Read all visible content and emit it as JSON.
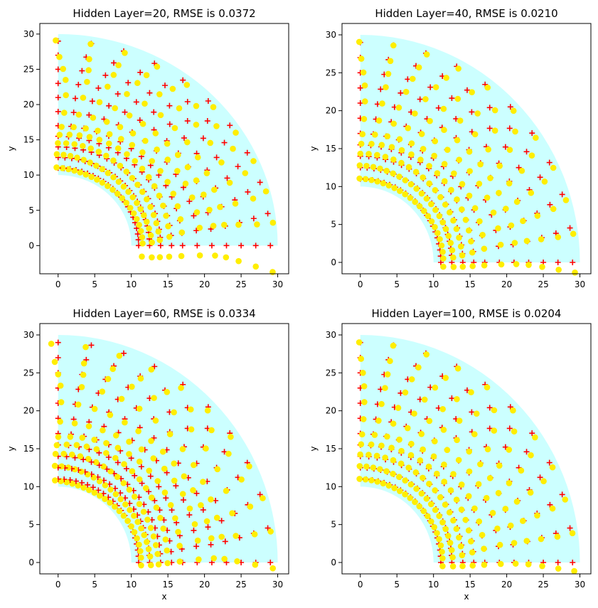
{
  "chart_data": [
    {
      "type": "scatter",
      "title": "Hidden Layer=20, RMSE is 0.0372",
      "xlabel": "",
      "ylabel": "y",
      "xlim": [
        -2.5,
        31.5
      ],
      "ylim": [
        -4.0,
        31.5
      ],
      "xticks": [
        "0",
        "5",
        "10",
        "15",
        "20",
        "25",
        "30"
      ],
      "yticks": [
        "0",
        "5",
        "10",
        "15",
        "20",
        "25",
        "30"
      ],
      "domain": {
        "r_inner": 10,
        "r_outer": 30,
        "color": "#ccffff"
      },
      "true_points": {
        "marker": "plus",
        "color": "#ff0000"
      },
      "predicted_points": {
        "marker": "circle",
        "color": "#ffee00"
      },
      "rmse": 0.0372,
      "distortion": {
        "r_bias": 0.15,
        "r_wave": 0.4,
        "theta_bias": -0.015,
        "theta_wave": 0.035,
        "extra_drop": 2.5
      }
    },
    {
      "type": "scatter",
      "title": "Hidden Layer=40, RMSE is 0.0210",
      "xlabel": "",
      "ylabel": "y",
      "xlim": [
        -2.5,
        31.5
      ],
      "ylim": [
        -1.5,
        31.5
      ],
      "xticks": [
        "0",
        "5",
        "10",
        "15",
        "20",
        "25",
        "30"
      ],
      "yticks": [
        "0",
        "5",
        "10",
        "15",
        "20",
        "25",
        "30"
      ],
      "domain": {
        "r_inner": 10,
        "r_outer": 30,
        "color": "#ccffff"
      },
      "true_points": {
        "marker": "plus",
        "color": "#ff0000"
      },
      "predicted_points": {
        "marker": "circle",
        "color": "#ffee00"
      },
      "rmse": 0.021,
      "distortion": {
        "r_bias": 0.1,
        "r_wave": 0.25,
        "theta_bias": -0.01,
        "theta_wave": 0.02,
        "extra_drop": 0.6
      }
    },
    {
      "type": "scatter",
      "title": "Hidden Layer=60, RMSE is 0.0334",
      "xlabel": "x",
      "ylabel": "y",
      "xlim": [
        -2.5,
        31.5
      ],
      "ylim": [
        -1.5,
        31.5
      ],
      "xticks": [
        "0",
        "5",
        "10",
        "15",
        "20",
        "25",
        "30"
      ],
      "yticks": [
        "0",
        "5",
        "10",
        "15",
        "20",
        "25",
        "30"
      ],
      "domain": {
        "r_inner": 10,
        "r_outer": 30,
        "color": "#ccffff"
      },
      "true_points": {
        "marker": "plus",
        "color": "#ff0000"
      },
      "predicted_points": {
        "marker": "circle",
        "color": "#ffee00"
      },
      "rmse": 0.0334,
      "distortion": {
        "r_bias": -0.1,
        "r_wave": 0.45,
        "theta_bias": 0.01,
        "theta_wave": 0.03,
        "extra_drop": 0.4
      }
    },
    {
      "type": "scatter",
      "title": "Hidden Layer=100, RMSE is 0.0204",
      "xlabel": "x",
      "ylabel": "y",
      "xlim": [
        -2.5,
        31.5
      ],
      "ylim": [
        -1.5,
        31.5
      ],
      "xticks": [
        "0",
        "5",
        "10",
        "15",
        "20",
        "25",
        "30"
      ],
      "yticks": [
        "0",
        "5",
        "10",
        "15",
        "20",
        "25",
        "30"
      ],
      "domain": {
        "r_inner": 10,
        "r_outer": 30,
        "color": "#ccffff"
      },
      "true_points": {
        "marker": "plus",
        "color": "#ff0000"
      },
      "predicted_points": {
        "marker": "circle",
        "color": "#ffee00"
      },
      "rmse": 0.0204,
      "distortion": {
        "r_bias": 0.05,
        "r_wave": 0.2,
        "theta_bias": -0.008,
        "theta_wave": 0.018,
        "extra_drop": 0.5
      }
    }
  ],
  "grid": {
    "radii": [
      11,
      12.5,
      14,
      15.5,
      17,
      19,
      21,
      23,
      25,
      27,
      29
    ],
    "angle_counts": [
      22,
      22,
      20,
      18,
      16,
      15,
      15,
      14,
      13,
      12,
      11
    ]
  }
}
